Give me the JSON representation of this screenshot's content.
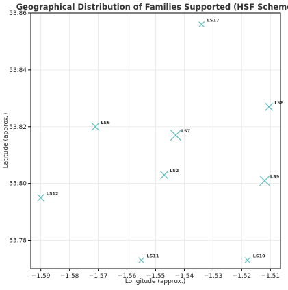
{
  "chart_data": {
    "type": "scatter",
    "title": "Geographical Distribution of Families Supported (HSF Scheme)",
    "xlabel": "Longitude (approx.)",
    "ylabel": "Latitude (approx.)",
    "xlim": [
      -1.5935,
      -1.5065
    ],
    "ylim": [
      53.77,
      53.86
    ],
    "xticks": [
      -1.59,
      -1.58,
      -1.57,
      -1.56,
      -1.55,
      -1.54,
      -1.53,
      -1.52,
      -1.51
    ],
    "xtick_labels": [
      "−1.59",
      "−1.58",
      "−1.57",
      "−1.56",
      "−1.55",
      "−1.54",
      "−1.53",
      "−1.52",
      "−1.51"
    ],
    "yticks": [
      53.78,
      53.8,
      53.82,
      53.84,
      53.86
    ],
    "ytick_labels": [
      "53.78",
      "53.80",
      "53.82",
      "53.84",
      "53.86"
    ],
    "grid": true,
    "marker": "x",
    "color": "#5fbdbd",
    "points": [
      {
        "label": "LS17",
        "x": -1.534,
        "y": 53.856,
        "size": 1
      },
      {
        "label": "LS8",
        "x": -1.5105,
        "y": 53.827,
        "size": 2
      },
      {
        "label": "LS6",
        "x": -1.571,
        "y": 53.82,
        "size": 2
      },
      {
        "label": "LS7",
        "x": -1.543,
        "y": 53.817,
        "size": 4
      },
      {
        "label": "LS2",
        "x": -1.547,
        "y": 53.803,
        "size": 2
      },
      {
        "label": "LS9",
        "x": -1.512,
        "y": 53.801,
        "size": 4
      },
      {
        "label": "LS12",
        "x": -1.59,
        "y": 53.795,
        "size": 1.5
      },
      {
        "label": "LS11",
        "x": -1.555,
        "y": 53.773,
        "size": 1
      },
      {
        "label": "LS10",
        "x": -1.518,
        "y": 53.773,
        "size": 1
      }
    ]
  }
}
